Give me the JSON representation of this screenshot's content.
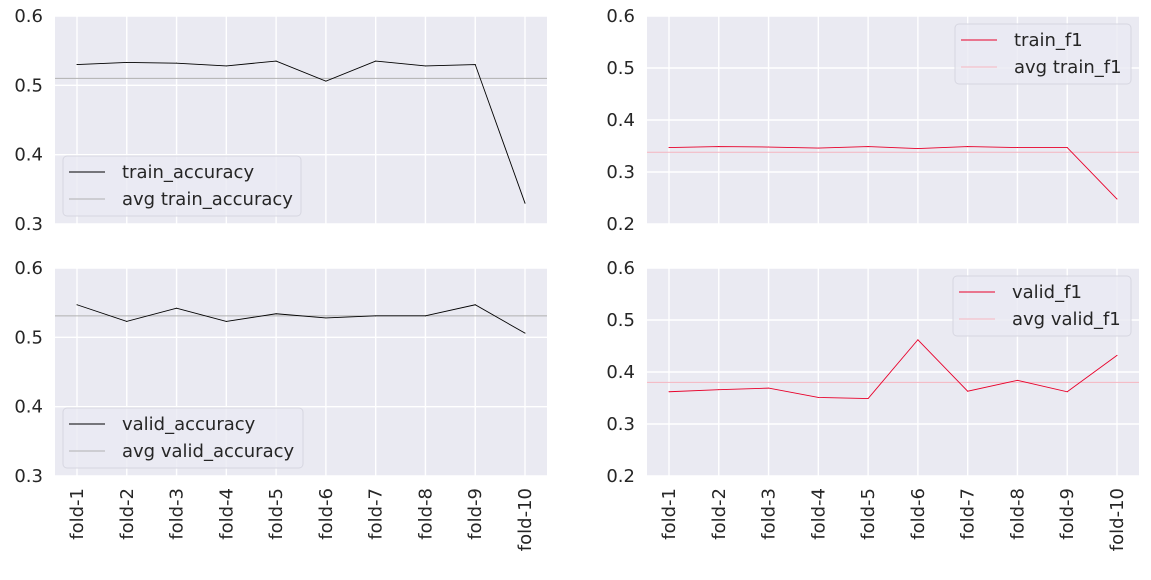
{
  "categories": [
    "fold-1",
    "fold-2",
    "fold-3",
    "fold-4",
    "fold-5",
    "fold-6",
    "fold-7",
    "fold-8",
    "fold-9",
    "fold-10"
  ],
  "colors": {
    "plot_background": "#eaeaf2",
    "grid": "#ffffff",
    "accuracy_line": "#000000",
    "accuracy_avg_line": "#b0b0b0",
    "f1_line": "#e8002a",
    "f1_avg_line": "#f5b5c0"
  },
  "chart_data": [
    {
      "type": "line",
      "id": "train-accuracy",
      "position": "top-left",
      "ylim": [
        0.3,
        0.6
      ],
      "yticks": [
        0.3,
        0.4,
        0.5,
        0.6
      ],
      "show_x_tick_labels": false,
      "grid": true,
      "legend_placement": "lower-left",
      "series": [
        {
          "name": "train_accuracy",
          "color_key": "accuracy_line",
          "values": [
            0.53,
            0.533,
            0.532,
            0.528,
            0.535,
            0.506,
            0.535,
            0.528,
            0.53,
            0.33
          ]
        }
      ],
      "average": {
        "name": "avg train_accuracy",
        "color_key": "accuracy_avg_line",
        "value": 0.51
      }
    },
    {
      "type": "line",
      "id": "train-f1",
      "position": "top-right",
      "ylim": [
        0.2,
        0.6
      ],
      "yticks": [
        0.2,
        0.3,
        0.4,
        0.5,
        0.6
      ],
      "show_x_tick_labels": false,
      "grid": true,
      "legend_placement": "upper-right",
      "series": [
        {
          "name": "train_f1",
          "color_key": "f1_line",
          "values": [
            0.347,
            0.349,
            0.348,
            0.346,
            0.349,
            0.345,
            0.349,
            0.347,
            0.347,
            0.248
          ]
        }
      ],
      "average": {
        "name": "avg train_f1",
        "color_key": "f1_avg_line",
        "value": 0.338
      }
    },
    {
      "type": "line",
      "id": "valid-accuracy",
      "position": "bottom-left",
      "ylim": [
        0.3,
        0.6
      ],
      "yticks": [
        0.3,
        0.4,
        0.5,
        0.6
      ],
      "show_x_tick_labels": true,
      "grid": true,
      "legend_placement": "lower-left",
      "series": [
        {
          "name": "valid_accuracy",
          "color_key": "accuracy_line",
          "values": [
            0.547,
            0.523,
            0.542,
            0.523,
            0.534,
            0.528,
            0.531,
            0.531,
            0.547,
            0.506
          ]
        }
      ],
      "average": {
        "name": "avg valid_accuracy",
        "color_key": "accuracy_avg_line",
        "value": 0.531
      }
    },
    {
      "type": "line",
      "id": "valid-f1",
      "position": "bottom-right",
      "ylim": [
        0.2,
        0.6
      ],
      "yticks": [
        0.2,
        0.3,
        0.4,
        0.5,
        0.6
      ],
      "show_x_tick_labels": true,
      "grid": true,
      "legend_placement": "upper-right",
      "series": [
        {
          "name": "valid_f1",
          "color_key": "f1_line",
          "values": [
            0.362,
            0.366,
            0.369,
            0.351,
            0.349,
            0.462,
            0.363,
            0.384,
            0.362,
            0.432
          ]
        }
      ],
      "average": {
        "name": "avg valid_f1",
        "color_key": "f1_avg_line",
        "value": 0.38
      }
    }
  ]
}
